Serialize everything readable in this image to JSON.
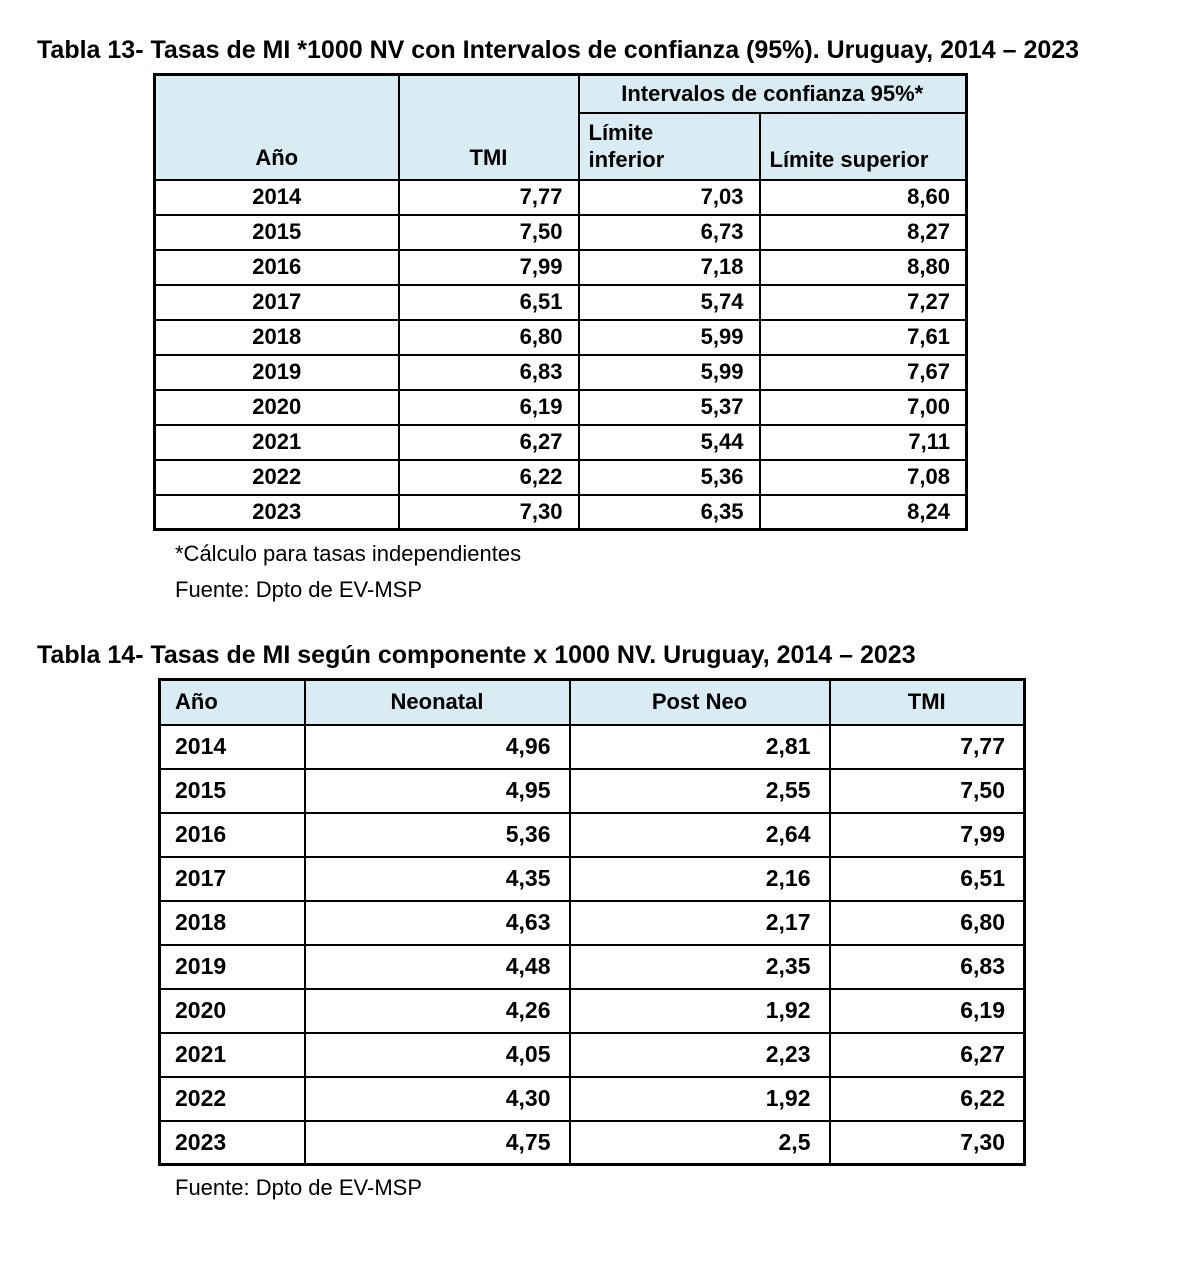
{
  "colors": {
    "header_fill": "#d9ebf3",
    "border": "#000000",
    "text": "#000000",
    "page_background": "#ffffff"
  },
  "table13": {
    "title": "Tabla 13- Tasas de MI *1000 NV con Intervalos de confianza (95%). Uruguay, 2014 – 2023",
    "header": {
      "anio": "Año",
      "tmi": "TMI",
      "ci_group": "Intervalos de confianza 95%*",
      "limite_inferior": "Límite\ninferior",
      "limite_superior": "Límite superior"
    },
    "rows": [
      [
        "2014",
        "7,77",
        "7,03",
        "8,60"
      ],
      [
        "2015",
        "7,50",
        "6,73",
        "8,27"
      ],
      [
        "2016",
        "7,99",
        "7,18",
        "8,80"
      ],
      [
        "2017",
        "6,51",
        "5,74",
        "7,27"
      ],
      [
        "2018",
        "6,80",
        "5,99",
        "7,61"
      ],
      [
        "2019",
        "6,83",
        "5,99",
        "7,67"
      ],
      [
        "2020",
        "6,19",
        "5,37",
        "7,00"
      ],
      [
        "2021",
        "6,27",
        "5,44",
        "7,11"
      ],
      [
        "2022",
        "6,22",
        "5,36",
        "7,08"
      ],
      [
        "2023",
        "7,30",
        "6,35",
        "8,24"
      ]
    ],
    "footnote": "*Cálculo para tasas independientes",
    "source": "Fuente: Dpto de EV-MSP"
  },
  "table14": {
    "title": "Tabla 14- Tasas de MI según componente x 1000 NV. Uruguay, 2014 – 2023",
    "headers": [
      "Año",
      "Neonatal",
      "Post Neo",
      "TMI"
    ],
    "rows": [
      [
        "2014",
        "4,96",
        "2,81",
        "7,77"
      ],
      [
        "2015",
        "4,95",
        "2,55",
        "7,50"
      ],
      [
        "2016",
        "5,36",
        "2,64",
        "7,99"
      ],
      [
        "2017",
        "4,35",
        "2,16",
        "6,51"
      ],
      [
        "2018",
        "4,63",
        "2,17",
        "6,80"
      ],
      [
        "2019",
        "4,48",
        "2,35",
        "6,83"
      ],
      [
        "2020",
        "4,26",
        "1,92",
        "6,19"
      ],
      [
        "2021",
        "4,05",
        "2,23",
        "6,27"
      ],
      [
        "2022",
        "4,30",
        "1,92",
        "6,22"
      ],
      [
        "2023",
        "4,75",
        "2,5",
        "7,30"
      ]
    ],
    "source": "Fuente: Dpto de EV-MSP"
  }
}
